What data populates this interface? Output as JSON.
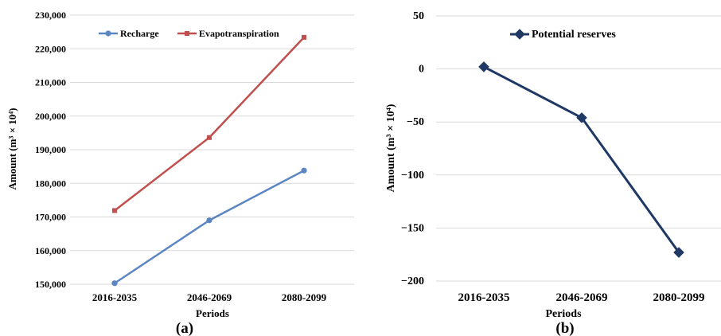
{
  "chart_data": [
    {
      "type": "line",
      "panel_label": "(a)",
      "xlabel": "Periods",
      "ylabel": "Amount (m³ × 10⁴)",
      "categories": [
        "2016-2035",
        "2046-2069",
        "2080-2099"
      ],
      "ylim": [
        150000,
        230000
      ],
      "yticks": [
        150000,
        160000,
        170000,
        180000,
        190000,
        200000,
        210000,
        220000,
        230000
      ],
      "ytick_labels": [
        "150,000",
        "160,000",
        "170,000",
        "180,000",
        "190,000",
        "200,000",
        "210,000",
        "220,000",
        "230,000"
      ],
      "grid": "horizontal",
      "legend": "top",
      "series": [
        {
          "name": "Recharge",
          "color": "#5b86c1",
          "marker": "circle",
          "values": [
            150300,
            169000,
            183800
          ]
        },
        {
          "name": "Evapotranspiration",
          "color": "#c0504d",
          "marker": "square",
          "values": [
            171900,
            193600,
            223400
          ]
        }
      ]
    },
    {
      "type": "line",
      "panel_label": "(b)",
      "xlabel": "Periods",
      "ylabel": "Amount (m³ × 10⁴)",
      "categories": [
        "2016-2035",
        "2046-2069",
        "2080-2099"
      ],
      "ylim": [
        -200,
        50
      ],
      "yticks": [
        -200,
        -150,
        -100,
        -50,
        0,
        50
      ],
      "ytick_labels": [
        "−200",
        "−150",
        "−100",
        "−50",
        "0",
        "50"
      ],
      "grid": "horizontal",
      "legend": "top-left",
      "series": [
        {
          "name": "Potential reserves",
          "color": "#1f3864",
          "marker": "diamond",
          "values": [
            2,
            -46,
            -173
          ]
        }
      ]
    }
  ]
}
